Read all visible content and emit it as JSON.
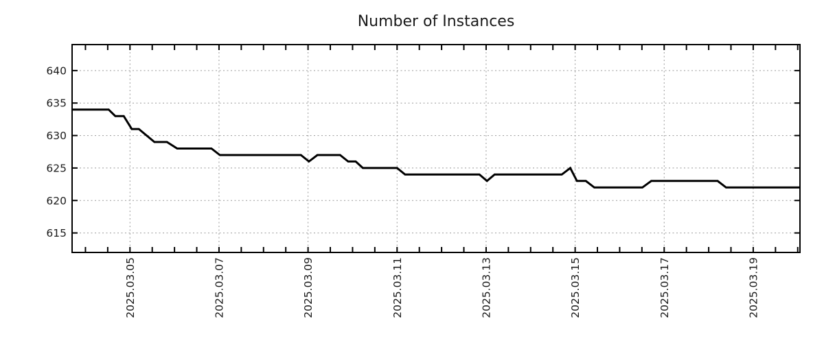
{
  "title": "Number of Instances",
  "chart_data": {
    "type": "line",
    "title": "Number of Instances",
    "legend": false,
    "grid": true,
    "background": "#ffffff",
    "colors": {
      "line": "#000000",
      "grid": "#999999",
      "axis": "#000000",
      "text": "#1a1a1a"
    },
    "x_axis": {
      "unit": "days since 2025-03-03 00:00",
      "range": [
        0.7,
        17.05
      ],
      "minor_tick_interval": 0.5,
      "major_ticks": [
        {
          "t": 2,
          "label": "2025.03.05"
        },
        {
          "t": 4,
          "label": "2025.03.07"
        },
        {
          "t": 6,
          "label": "2025.03.09"
        },
        {
          "t": 8,
          "label": "2025.03.11"
        },
        {
          "t": 10,
          "label": "2025.03.13"
        },
        {
          "t": 12,
          "label": "2025.03.15"
        },
        {
          "t": 14,
          "label": "2025.03.17"
        },
        {
          "t": 16,
          "label": "2025.03.19"
        }
      ]
    },
    "y_axis": {
      "range": [
        612,
        644
      ],
      "ticks": [
        615,
        620,
        625,
        630,
        635,
        640
      ]
    },
    "series": [
      {
        "name": "Number of Instances",
        "color": "#000000",
        "line_width": 3,
        "points": [
          [
            0.7,
            634
          ],
          [
            1.52,
            634
          ],
          [
            1.67,
            633
          ],
          [
            1.86,
            633
          ],
          [
            2.04,
            631
          ],
          [
            2.2,
            631
          ],
          [
            2.55,
            629
          ],
          [
            2.83,
            629
          ],
          [
            3.06,
            628
          ],
          [
            3.83,
            628
          ],
          [
            4.02,
            627
          ],
          [
            5.84,
            627
          ],
          [
            6.02,
            626
          ],
          [
            6.21,
            627
          ],
          [
            6.72,
            627
          ],
          [
            6.9,
            626
          ],
          [
            7.07,
            626
          ],
          [
            7.23,
            625
          ],
          [
            8.0,
            625
          ],
          [
            8.18,
            624
          ],
          [
            9.85,
            624
          ],
          [
            10.02,
            623
          ],
          [
            10.19,
            624
          ],
          [
            11.7,
            624
          ],
          [
            11.89,
            625
          ],
          [
            12.04,
            623
          ],
          [
            12.24,
            623
          ],
          [
            12.43,
            622
          ],
          [
            13.51,
            622
          ],
          [
            13.71,
            623
          ],
          [
            15.2,
            623
          ],
          [
            15.39,
            622
          ],
          [
            17.05,
            622
          ]
        ]
      }
    ]
  }
}
